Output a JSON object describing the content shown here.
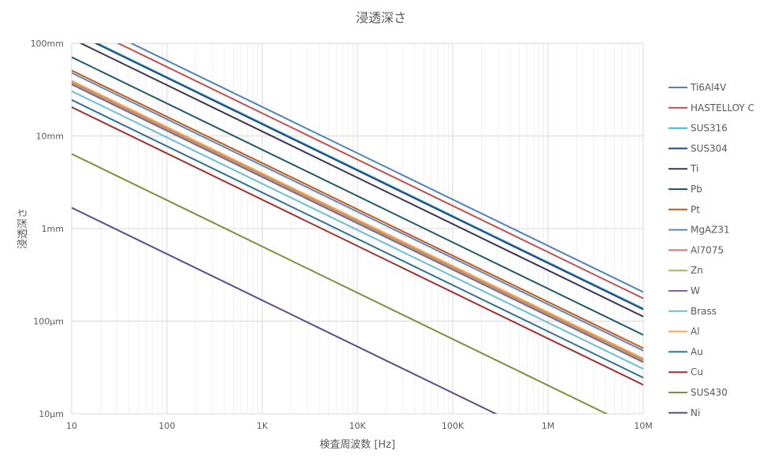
{
  "chart_data": {
    "type": "line",
    "title": "浸透深さ",
    "xlabel": "検査周波数 [Hz]",
    "ylabel": "浸透深さ",
    "x_scale": "log",
    "y_scale": "log",
    "xlim": [
      10,
      10000000
    ],
    "ylim": [
      0.01,
      100
    ],
    "x_ticks": [
      {
        "value": 10,
        "label": "10"
      },
      {
        "value": 100,
        "label": "100"
      },
      {
        "value": 1000,
        "label": "1K"
      },
      {
        "value": 10000,
        "label": "10K"
      },
      {
        "value": 100000,
        "label": "100K"
      },
      {
        "value": 1000000,
        "label": "1M"
      },
      {
        "value": 10000000,
        "label": "10M"
      }
    ],
    "y_ticks": [
      {
        "value": 0.01,
        "label": "10μm"
      },
      {
        "value": 0.1,
        "label": "100μm"
      },
      {
        "value": 1,
        "label": "1mm"
      },
      {
        "value": 10,
        "label": "10mm"
      },
      {
        "value": 100,
        "label": "100mm"
      }
    ],
    "grid": true,
    "legend_position": "right",
    "series": [
      {
        "name": "Ti6Al4V",
        "color": "#4f81bd",
        "x": [
          10,
          10000000
        ],
        "y": [
          206,
          0.206
        ]
      },
      {
        "name": "HASTELLOY C",
        "color": "#c0504d",
        "x": [
          10,
          10000000
        ],
        "y": [
          176,
          0.176
        ]
      },
      {
        "name": "SUS316",
        "color": "#4bacc6",
        "x": [
          10,
          10000000
        ],
        "y": [
          137,
          0.137
        ]
      },
      {
        "name": "SUS304",
        "color": "#1f497d",
        "x": [
          10,
          10000000
        ],
        "y": [
          134,
          0.134
        ]
      },
      {
        "name": "Ti",
        "color": "#3b3453",
        "x": [
          10,
          10000000
        ],
        "y": [
          112,
          0.112
        ]
      },
      {
        "name": "Pb",
        "color": "#215968",
        "x": [
          10,
          10000000
        ],
        "y": [
          71,
          0.071
        ]
      },
      {
        "name": "Pt",
        "color": "#c65911",
        "x": [
          10,
          10000000
        ],
        "y": [
          51,
          0.051
        ]
      },
      {
        "name": "MgAZ31",
        "color": "#5b86c6",
        "x": [
          10,
          10000000
        ],
        "y": [
          48,
          0.048
        ]
      },
      {
        "name": "Al7075",
        "color": "#d9706b",
        "x": [
          10,
          10000000
        ],
        "y": [
          38,
          0.038
        ]
      },
      {
        "name": "Zn",
        "color": "#9bbb59",
        "x": [
          10,
          10000000
        ],
        "y": [
          37,
          0.037
        ]
      },
      {
        "name": "W",
        "color": "#8064a2",
        "x": [
          10,
          10000000
        ],
        "y": [
          36,
          0.036
        ]
      },
      {
        "name": "Brass",
        "color": "#6dbcd6",
        "x": [
          10,
          10000000
        ],
        "y": [
          30.5,
          0.0305
        ]
      },
      {
        "name": "Al",
        "color": "#f6a45a",
        "x": [
          10,
          10000000
        ],
        "y": [
          39.5,
          0.0395
        ]
      },
      {
        "name": "Au",
        "color": "#31708f",
        "x": [
          10,
          10000000
        ],
        "y": [
          24.5,
          0.0245
        ]
      },
      {
        "name": "Cu",
        "color": "#a03030",
        "x": [
          10,
          10000000
        ],
        "y": [
          20.5,
          0.0205
        ]
      },
      {
        "name": "SUS430",
        "color": "#76923c",
        "x": [
          10,
          10000000
        ],
        "y": [
          6.4,
          0.0064
        ]
      },
      {
        "name": "Ni",
        "color": "#5f4b8b",
        "x": [
          10,
          10000000
        ],
        "y": [
          1.68,
          0.00168
        ]
      }
    ]
  }
}
